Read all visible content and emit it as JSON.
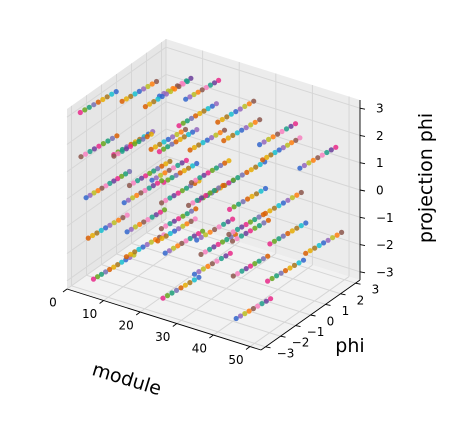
{
  "chart_data": {
    "type": "scatter",
    "projection": "3d",
    "title": "",
    "xlabel": "module",
    "ylabel": "phi",
    "zlabel": "projection phi",
    "xlim": [
      0,
      53
    ],
    "ylim": [
      -3.3,
      3.3
    ],
    "zlim": [
      -3.3,
      3.3
    ],
    "xticks": [
      "0",
      "10",
      "20",
      "30",
      "40",
      "50"
    ],
    "yticks": [
      "−3",
      "−2",
      "−1",
      "0",
      "1",
      "2",
      "3"
    ],
    "zticks": [
      "−3",
      "−2",
      "−1",
      "0",
      "1",
      "2",
      "3"
    ],
    "grid": true,
    "point_colors": [
      "#e7298a",
      "#66a61e",
      "#1b9e77",
      "#7570b3",
      "#d95f02",
      "#e6ab02",
      "#a6761d",
      "#17becf",
      "#3366cc",
      "#9467bd",
      "#bcbd22",
      "#ff7f0e",
      "#8c564b",
      "#f781bf",
      "#1f9e89",
      "#6a3d9a"
    ],
    "series": [
      {
        "module": 2,
        "phi_start": -2.9,
        "phi_end": -0.8,
        "projection_phi": 3.1
      },
      {
        "module": 4,
        "phi_start": -0.6,
        "phi_end": 1.4,
        "projection_phi": 2.7
      },
      {
        "module": 6,
        "phi_start": 1.4,
        "phi_end": 3.2,
        "projection_phi": 2.2
      },
      {
        "module": 3,
        "phi_start": -3.1,
        "phi_end": -1.0,
        "projection_phi": 1.6
      },
      {
        "module": 5,
        "phi_start": -1.4,
        "phi_end": 0.9,
        "projection_phi": 1.1
      },
      {
        "module": 7,
        "phi_start": 0.6,
        "phi_end": 2.6,
        "projection_phi": 0.6
      },
      {
        "module": 4,
        "phi_start": -3.0,
        "phi_end": -0.4,
        "projection_phi": 0.1
      },
      {
        "module": 6,
        "phi_start": -0.6,
        "phi_end": 1.8,
        "projection_phi": -0.3
      },
      {
        "module": 8,
        "phi_start": 1.2,
        "phi_end": 3.1,
        "projection_phi": -0.8
      },
      {
        "module": 5,
        "phi_start": -3.1,
        "phi_end": -0.8,
        "projection_phi": -1.3
      },
      {
        "module": 7,
        "phi_start": -1.0,
        "phi_end": 1.2,
        "projection_phi": -1.8
      },
      {
        "module": 9,
        "phi_start": 0.8,
        "phi_end": 2.8,
        "projection_phi": -2.3
      },
      {
        "module": 6,
        "phi_start": -3.0,
        "phi_end": -0.6,
        "projection_phi": -2.8
      },
      {
        "module": 12,
        "phi_start": -1.0,
        "phi_end": 1.5,
        "projection_phi": 3.0
      },
      {
        "module": 14,
        "phi_start": 1.2,
        "phi_end": 3.1,
        "projection_phi": 2.5
      },
      {
        "module": 12,
        "phi_start": -3.1,
        "phi_end": -0.9,
        "projection_phi": 2.0
      },
      {
        "module": 15,
        "phi_start": -0.8,
        "phi_end": 1.4,
        "projection_phi": 1.4
      },
      {
        "module": 16,
        "phi_start": 1.0,
        "phi_end": 3.0,
        "projection_phi": 0.8
      },
      {
        "module": 14,
        "phi_start": -2.9,
        "phi_end": -0.7,
        "projection_phi": 0.3
      },
      {
        "module": 16,
        "phi_start": -0.9,
        "phi_end": 1.3,
        "projection_phi": -0.4
      },
      {
        "module": 18,
        "phi_start": 1.1,
        "phi_end": 3.1,
        "projection_phi": -1.0
      },
      {
        "module": 15,
        "phi_start": -3.0,
        "phi_end": -0.8,
        "projection_phi": -1.6
      },
      {
        "module": 17,
        "phi_start": -0.9,
        "phi_end": 1.3,
        "projection_phi": -2.2
      },
      {
        "module": 19,
        "phi_start": 1.0,
        "phi_end": 3.0,
        "projection_phi": -2.9
      },
      {
        "module": 22,
        "phi_start": -1.2,
        "phi_end": 1.0,
        "projection_phi": 2.8
      },
      {
        "module": 24,
        "phi_start": 0.9,
        "phi_end": 3.0,
        "projection_phi": 2.2
      },
      {
        "module": 22,
        "phi_start": -3.0,
        "phi_end": -1.0,
        "projection_phi": 1.5
      },
      {
        "module": 25,
        "phi_start": -1.1,
        "phi_end": 1.1,
        "projection_phi": 0.8
      },
      {
        "module": 27,
        "phi_start": 0.9,
        "phi_end": 3.0,
        "projection_phi": 0.1
      },
      {
        "module": 24,
        "phi_start": -3.1,
        "phi_end": -0.9,
        "projection_phi": -0.6
      },
      {
        "module": 26,
        "phi_start": -1.0,
        "phi_end": 1.1,
        "projection_phi": -1.3
      },
      {
        "module": 28,
        "phi_start": 0.9,
        "phi_end": 3.0,
        "projection_phi": -2.0
      },
      {
        "module": 25,
        "phi_start": -3.0,
        "phi_end": -0.9,
        "projection_phi": -2.7
      },
      {
        "module": 33,
        "phi_start": -0.9,
        "phi_end": 1.2,
        "projection_phi": 2.6
      },
      {
        "module": 35,
        "phi_start": 1.0,
        "phi_end": 3.1,
        "projection_phi": 1.8
      },
      {
        "module": 32,
        "phi_start": -3.0,
        "phi_end": -1.0,
        "projection_phi": 1.0
      },
      {
        "module": 35,
        "phi_start": -1.0,
        "phi_end": 1.1,
        "projection_phi": 0.2
      },
      {
        "module": 37,
        "phi_start": 0.9,
        "phi_end": 3.0,
        "projection_phi": -0.6
      },
      {
        "module": 34,
        "phi_start": -3.1,
        "phi_end": -1.0,
        "projection_phi": -1.4
      },
      {
        "module": 36,
        "phi_start": -1.0,
        "phi_end": 1.0,
        "projection_phi": -2.2
      },
      {
        "module": 38,
        "phi_start": 0.8,
        "phi_end": 2.9,
        "projection_phi": -3.0
      },
      {
        "module": 44,
        "phi_start": -1.0,
        "phi_end": 1.2,
        "projection_phi": 2.4
      },
      {
        "module": 46,
        "phi_start": 1.0,
        "phi_end": 3.1,
        "projection_phi": 1.4
      },
      {
        "module": 43,
        "phi_start": -3.0,
        "phi_end": -1.0,
        "projection_phi": 0.4
      },
      {
        "module": 46,
        "phi_start": -1.0,
        "phi_end": 1.1,
        "projection_phi": -0.6
      },
      {
        "module": 48,
        "phi_start": 0.9,
        "phi_end": 3.0,
        "projection_phi": -1.6
      },
      {
        "module": 45,
        "phi_start": -3.0,
        "phi_end": -1.0,
        "projection_phi": -2.6
      }
    ]
  }
}
